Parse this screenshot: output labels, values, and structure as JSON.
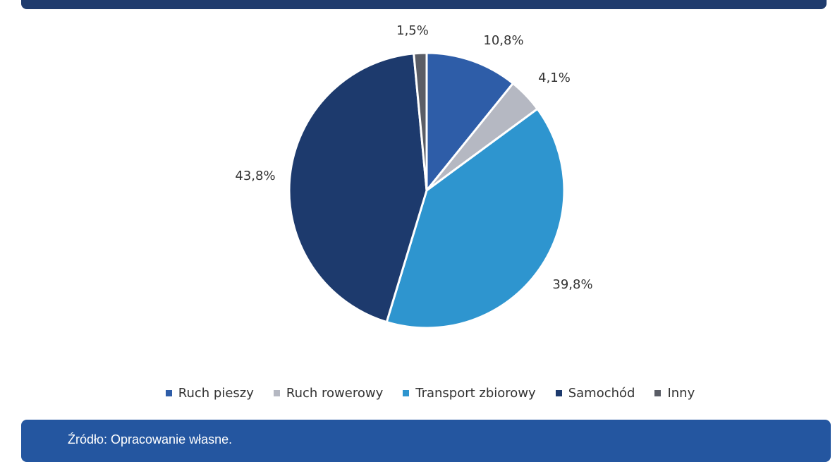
{
  "chart_data": {
    "type": "pie",
    "slices": [
      {
        "name": "Ruch pieszy",
        "value": 10.8,
        "label": "10,8%",
        "color": "#2e5da8"
      },
      {
        "name": "Ruch rowerowy",
        "value": 4.1,
        "label": "4,1%",
        "color": "#b5b8c2"
      },
      {
        "name": "Transport zbiorowy",
        "value": 39.8,
        "label": "39,8%",
        "color": "#2e95cf"
      },
      {
        "name": "Samochód",
        "value": 43.8,
        "label": "43,8%",
        "color": "#1d3a6d"
      },
      {
        "name": "Inny",
        "value": 1.5,
        "label": "1,5%",
        "color": "#5a5d66"
      }
    ],
    "start_angle_deg": 0,
    "direction": "clockwise",
    "legend_position": "bottom"
  },
  "footer": {
    "source": "Źródło: Opracowanie własne."
  },
  "colors": {
    "top_banner": "#1f3b6d",
    "bottom_banner": "#2456a0"
  }
}
